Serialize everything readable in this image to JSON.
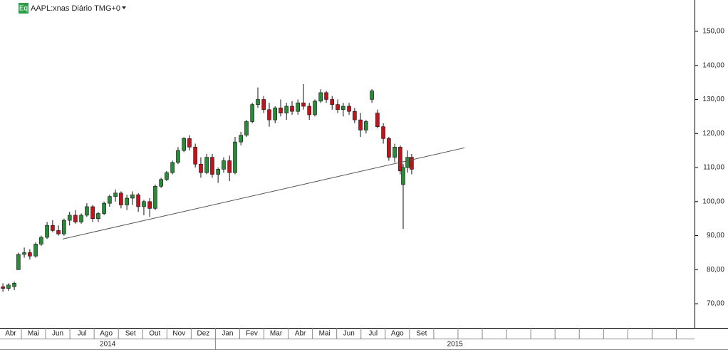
{
  "chart_data": {
    "type": "candlestick",
    "badge": "Eq",
    "title": "AAPL:xnas Diário TMG+0",
    "up_color": "#2a8a3a",
    "down_color": "#c0141c",
    "ylim": [
      62.9,
      159.2
    ],
    "yticks": [
      {
        "value": 70,
        "label": "70,00"
      },
      {
        "value": 80,
        "label": "80,00"
      },
      {
        "value": 90,
        "label": "90,00"
      },
      {
        "value": 100,
        "label": "100,00"
      },
      {
        "value": 110,
        "label": "110,00"
      },
      {
        "value": 120,
        "label": "120,00"
      },
      {
        "value": 130,
        "label": "130,00"
      },
      {
        "value": 140,
        "label": "140,00"
      },
      {
        "value": 150,
        "label": "150,00"
      }
    ],
    "xlim": [
      0.12,
      28.75
    ],
    "xticks": [
      1,
      2,
      3,
      4,
      5,
      6,
      7,
      8,
      9,
      10,
      11,
      12,
      13,
      14,
      15,
      16,
      17,
      18,
      19,
      20,
      21,
      22,
      23,
      24,
      25,
      26,
      27,
      28
    ],
    "months": [
      "Abr",
      "Mai",
      "Jun",
      "Jul",
      "Ago",
      "Set",
      "Out",
      "Nov",
      "Dez",
      "Jan",
      "Fev",
      "Mar",
      "Abr",
      "Mai",
      "Jun",
      "Jul",
      "Ago",
      "Set"
    ],
    "year_ticks": [
      9
    ],
    "years": [
      "2014",
      "2015"
    ],
    "candles": [
      [
        0.24,
        75,
        76,
        73.5,
        74.5
      ],
      [
        0.47,
        74.5,
        76,
        73.8,
        75.5
      ],
      [
        0.71,
        75,
        76.5,
        74,
        76
      ],
      [
        0.88,
        80,
        85,
        80,
        84.5
      ],
      [
        1.12,
        84.5,
        86.5,
        83.5,
        85
      ],
      [
        1.35,
        85,
        86,
        83,
        84
      ],
      [
        1.59,
        84,
        88,
        83.5,
        87.5
      ],
      [
        1.82,
        87.5,
        90,
        87,
        89.5
      ],
      [
        2.06,
        89.5,
        94,
        89,
        93
      ],
      [
        2.29,
        93,
        94.5,
        91,
        91.5
      ],
      [
        2.53,
        91.5,
        93,
        90,
        90.5
      ],
      [
        2.76,
        90.5,
        95,
        90,
        94.5
      ],
      [
        2.99,
        94.5,
        97,
        93,
        96
      ],
      [
        3.23,
        96,
        97.5,
        93.5,
        94
      ],
      [
        3.47,
        94,
        96.5,
        93.5,
        96
      ],
      [
        3.7,
        96,
        99.5,
        95.5,
        98.5
      ],
      [
        3.94,
        98.5,
        99,
        94,
        95
      ],
      [
        4.17,
        95,
        97,
        94,
        96.5
      ],
      [
        4.41,
        96.5,
        100,
        96,
        99.5
      ],
      [
        4.64,
        99.5,
        102,
        98.5,
        101.5
      ],
      [
        4.88,
        101.5,
        103.5,
        100,
        102.5
      ],
      [
        5.11,
        102.5,
        103,
        98,
        99
      ],
      [
        5.35,
        99,
        102,
        97.5,
        101
      ],
      [
        5.58,
        101,
        103,
        99,
        102
      ],
      [
        5.82,
        102,
        102.5,
        97,
        98.5
      ],
      [
        6.05,
        98.5,
        100.5,
        96,
        100
      ],
      [
        6.29,
        100,
        101,
        95.5,
        98
      ],
      [
        6.52,
        98,
        105,
        97.5,
        104.5
      ],
      [
        6.76,
        104.5,
        107,
        104,
        106.5
      ],
      [
        6.99,
        106.5,
        109,
        106,
        108.5
      ],
      [
        7.23,
        108.5,
        112,
        108,
        111.5
      ],
      [
        7.46,
        111.5,
        116,
        111,
        115
      ],
      [
        7.7,
        115,
        119,
        114.5,
        118.5
      ],
      [
        7.93,
        118.5,
        119.5,
        115,
        116
      ],
      [
        8.17,
        116,
        117,
        110,
        111
      ],
      [
        8.4,
        111,
        113,
        107,
        108.5
      ],
      [
        8.64,
        108.5,
        114,
        108,
        113
      ],
      [
        8.87,
        113,
        114,
        107,
        108
      ],
      [
        9.11,
        108,
        110,
        105.5,
        109.5
      ],
      [
        9.34,
        109.5,
        113,
        108.5,
        112
      ],
      [
        9.58,
        112,
        113.5,
        106,
        108.5
      ],
      [
        9.81,
        108.5,
        119,
        108,
        117.5
      ],
      [
        10.05,
        117.5,
        120.5,
        116.5,
        119.5
      ],
      [
        10.28,
        119.5,
        124,
        119,
        123.5
      ],
      [
        10.52,
        123.5,
        129,
        123,
        128.5
      ],
      [
        10.75,
        128.5,
        133.5,
        127.5,
        130
      ],
      [
        10.99,
        130,
        131,
        126,
        127
      ],
      [
        11.22,
        127,
        129,
        122,
        124
      ],
      [
        11.46,
        124,
        128,
        123,
        127.5
      ],
      [
        11.69,
        127.5,
        130,
        125,
        126
      ],
      [
        11.93,
        126,
        129,
        124,
        128
      ],
      [
        12.16,
        128,
        129.5,
        125.5,
        126.5
      ],
      [
        12.4,
        126.5,
        130,
        125.5,
        129
      ],
      [
        12.63,
        129,
        134.5,
        127,
        128
      ],
      [
        12.87,
        128,
        129,
        124,
        125.5
      ],
      [
        13.1,
        125.5,
        130,
        125,
        129.5
      ],
      [
        13.34,
        129.5,
        133,
        129,
        132
      ],
      [
        13.57,
        132,
        132.5,
        129,
        130
      ],
      [
        13.81,
        130,
        131,
        127,
        128.5
      ],
      [
        14.04,
        128.5,
        130,
        126,
        127
      ],
      [
        14.27,
        127,
        129,
        125,
        128
      ],
      [
        14.51,
        128,
        129,
        125.5,
        126.5
      ],
      [
        14.74,
        126.5,
        127.5,
        123,
        124
      ],
      [
        14.98,
        124,
        126,
        119,
        121
      ],
      [
        15.21,
        121,
        124,
        120,
        123.5
      ],
      [
        15.45,
        130,
        133,
        129,
        132.5
      ],
      [
        15.68,
        126,
        127,
        121.5,
        122
      ],
      [
        15.92,
        122,
        123,
        117,
        118.5
      ],
      [
        16.15,
        118.5,
        119,
        112,
        113
      ],
      [
        16.39,
        113,
        117,
        111.5,
        116
      ],
      [
        16.62,
        116,
        116.5,
        108,
        109
      ],
      [
        16.74,
        105,
        111,
        92,
        110
      ],
      [
        16.92,
        110,
        115,
        108.5,
        113
      ],
      [
        17.09,
        113,
        114,
        108,
        109.5
      ]
    ],
    "trendline": {
      "x": [
        2.7,
        19.27
      ],
      "y": [
        89,
        115.8
      ]
    }
  }
}
